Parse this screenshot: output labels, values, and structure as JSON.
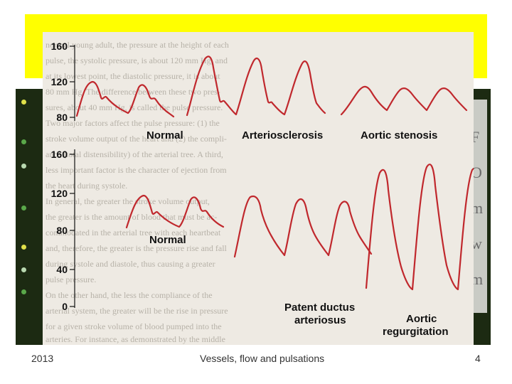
{
  "footer": {
    "year": "2013",
    "title": "Vessels, flow and pulsations",
    "page_number": "4"
  },
  "figure": {
    "top_panel": {
      "axis_ticks": [
        "160",
        "120",
        "80"
      ],
      "labels": [
        "Normal",
        "Arteriosclerosis",
        "Aortic stenosis"
      ]
    },
    "bottom_panel": {
      "axis_ticks": [
        "160",
        "120",
        "80",
        "40",
        "0"
      ],
      "labels": {
        "normal": "Normal",
        "pda_line1": "Patent ductus",
        "pda_line2": "arteriosus",
        "ar_line1": "Aortic",
        "ar_line2": "regurgitation"
      }
    },
    "background_text": [
      "normal young adult, the pressure at the height of each",
      "pulse, the systolic pressure, is about 120 mm Hg, and",
      "at its lowest point, the diastolic pressure, it is about",
      "80 mm Hg. The difference between these two pres-",
      "sures, about 40 mm Hg, is called the pulse pressure.",
      "Two major factors affect the pulse pressure: (1) the",
      "stroke volume output of the heart and (2) the compli-",
      "ance (total distensibility) of the arterial tree. A third,",
      "less important factor is the character of ejection from",
      "the heart during systole.",
      "In general, the greater the stroke volume output,",
      "the greater is the amount of blood that must be ac-",
      "commodated in the arterial tree with each heartbeat",
      "and, therefore, the greater is the pressure rise and fall",
      "during systole and diastole, thus causing a greater",
      "pulse pressure.",
      "On the other hand, the less the compliance of the",
      "arterial system, the greater will be the rise in pressure",
      "for a given stroke volume of blood pumped into the",
      "arteries. For instance, as demonstrated by the middle"
    ]
  },
  "colors": {
    "yellow_band": "#ffff00",
    "dark_panel": "#1c2a12",
    "curve": "#c0282d",
    "figure_bg": "#eeeae3"
  }
}
